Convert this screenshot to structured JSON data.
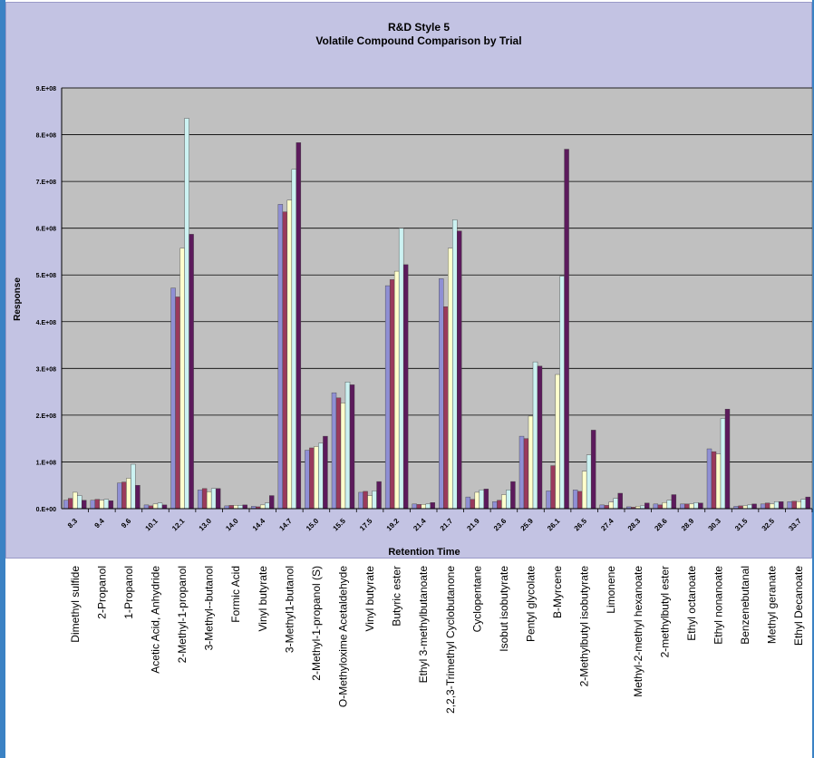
{
  "chart_data": {
    "type": "bar",
    "title": "R&D Style 5",
    "subtitle": "Volatile Compound Comparison by Trial",
    "xlabel": "Retention Time",
    "ylabel": "Response",
    "ylim": [
      0,
      900000000
    ],
    "yticks": [
      {
        "value": 0,
        "label": "0.E+00"
      },
      {
        "value": 100000000,
        "label": "1.E+08"
      },
      {
        "value": 200000000,
        "label": "2.E+08"
      },
      {
        "value": 300000000,
        "label": "3.E+08"
      },
      {
        "value": 400000000,
        "label": "4.E+08"
      },
      {
        "value": 500000000,
        "label": "5.E+08"
      },
      {
        "value": 600000000,
        "label": "6.E+08"
      },
      {
        "value": 700000000,
        "label": "7.E+08"
      },
      {
        "value": 800000000,
        "label": "8.E+08"
      },
      {
        "value": 900000000,
        "label": "9.E+08"
      }
    ],
    "grid": true,
    "categories": [
      "8.3",
      "9.4",
      "9.6",
      "10.1",
      "12.1",
      "13.0",
      "14.0",
      "14.4",
      "14.7",
      "15.0",
      "15.5",
      "17.5",
      "19.2",
      "21.4",
      "21.7",
      "21.9",
      "23.6",
      "25.9",
      "26.1",
      "26.5",
      "27.4",
      "28.3",
      "28.6",
      "28.9",
      "30.3",
      "31.5",
      "32.5",
      "33.7"
    ],
    "compound_names": [
      "Dimethyl sulfide",
      "2-Propanol",
      "1-Propanol",
      "Acetic Acid, Anhydride",
      "2-Methyl-1-propanol",
      "3-Methyl--butanol",
      "Formic Acid",
      "Vinyl butyrate",
      "3-Methyl1-butanol",
      "2-Methyl-1-propanol (S)",
      "O-Methyloxime Acetaldehyde",
      "Vinyl butyrate",
      "Butyric  ester",
      "Ethyl 3-methylbutanoate",
      "2,2,3-Trimethyl Cyclobutanone",
      "Cyclopentane",
      "Isobut isobutyrate",
      "Pentyl glycolate",
      "B-Myrcene",
      "2-Methylbutyl isobutyrate",
      "Limonene",
      "Methyl-2-methyl hexanoate",
      "2-methylbutyl ester",
      "Ethyl octanoate",
      "Ethyl nonanoate",
      "Benzenebutanal",
      "Methyl geranate",
      "Ethyl Decanoate"
    ],
    "series_colors": [
      "#8f8fd4",
      "#9a3a5c",
      "#ffffcc",
      "#ccf2f2",
      "#5c1a5c"
    ],
    "series": [
      {
        "values": [
          18000000,
          18000000,
          55000000,
          8000000,
          472000000,
          40000000,
          6000000,
          5000000,
          651000000,
          125000000,
          248000000,
          35000000,
          477000000,
          10000000,
          492000000,
          25000000,
          15000000,
          155000000,
          38000000,
          40000000,
          8000000,
          4000000,
          10000000,
          10000000,
          128000000,
          5000000,
          10000000,
          15000000
        ]
      },
      {
        "values": [
          22000000,
          20000000,
          57000000,
          6000000,
          453000000,
          43000000,
          7000000,
          4000000,
          635000000,
          130000000,
          237000000,
          37000000,
          490000000,
          9000000,
          432000000,
          20000000,
          18000000,
          150000000,
          92000000,
          37000000,
          7000000,
          3000000,
          8000000,
          10000000,
          122000000,
          6000000,
          12000000,
          16000000
        ]
      },
      {
        "values": [
          35000000,
          18000000,
          65000000,
          10000000,
          557000000,
          36000000,
          7000000,
          8000000,
          660000000,
          133000000,
          226000000,
          28000000,
          508000000,
          9000000,
          557000000,
          35000000,
          30000000,
          198000000,
          287000000,
          80000000,
          14000000,
          5000000,
          13000000,
          10000000,
          117000000,
          6000000,
          10000000,
          15000000
        ]
      },
      {
        "values": [
          28000000,
          20000000,
          95000000,
          12000000,
          835000000,
          43000000,
          7000000,
          12000000,
          726000000,
          140000000,
          271000000,
          38000000,
          600000000,
          10000000,
          618000000,
          40000000,
          40000000,
          314000000,
          497000000,
          115000000,
          22000000,
          6000000,
          18000000,
          13000000,
          193000000,
          8000000,
          15000000,
          20000000
        ]
      },
      {
        "values": [
          18000000,
          17000000,
          50000000,
          8000000,
          587000000,
          43000000,
          8000000,
          28000000,
          783000000,
          155000000,
          265000000,
          58000000,
          522000000,
          13000000,
          594000000,
          42000000,
          58000000,
          305000000,
          769000000,
          168000000,
          33000000,
          12000000,
          30000000,
          12000000,
          213000000,
          10000000,
          15000000,
          25000000
        ]
      }
    ]
  }
}
